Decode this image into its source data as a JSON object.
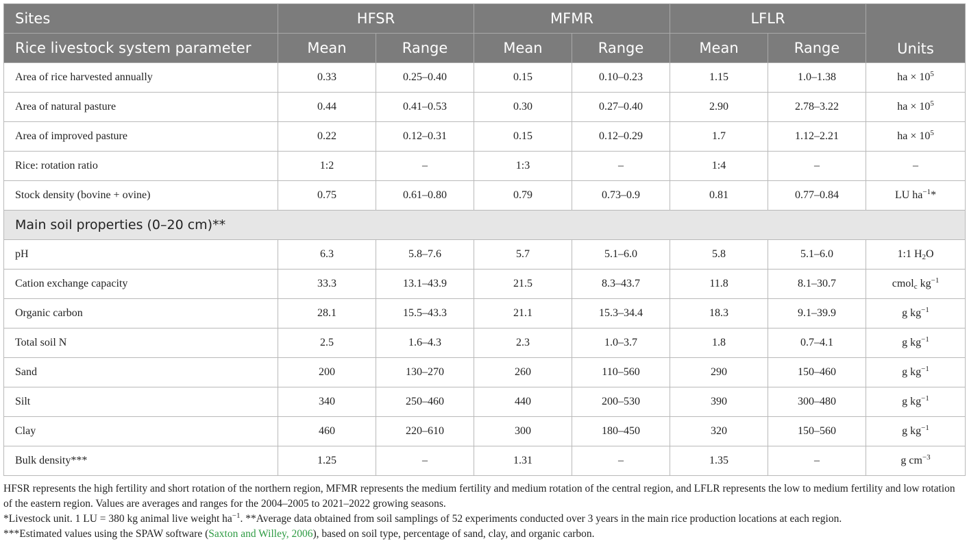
{
  "header": {
    "sites_label": "Sites",
    "param_label": "Rice livestock system parameter",
    "groups": [
      "HFSR",
      "MFMR",
      "LFLR"
    ],
    "mean_label": "Mean",
    "range_label": "Range",
    "units_label": "Units"
  },
  "rows": [
    {
      "label": "Area of rice harvested annually",
      "hfsr_mean": "0.33",
      "hfsr_range": "0.25–0.40",
      "mfmr_mean": "0.15",
      "mfmr_range": "0.10–0.23",
      "lflr_mean": "1.15",
      "lflr_range": "1.0–1.38",
      "unit_base": "ha × 10",
      "unit_sup": "5"
    },
    {
      "label": "Area of natural pasture",
      "hfsr_mean": "0.44",
      "hfsr_range": "0.41–0.53",
      "mfmr_mean": "0.30",
      "mfmr_range": "0.27–0.40",
      "lflr_mean": "2.90",
      "lflr_range": "2.78–3.22",
      "unit_base": "ha × 10",
      "unit_sup": "5"
    },
    {
      "label": "Area of improved pasture",
      "hfsr_mean": "0.22",
      "hfsr_range": "0.12–0.31",
      "mfmr_mean": "0.15",
      "mfmr_range": "0.12–0.29",
      "lflr_mean": "1.7",
      "lflr_range": "1.12–2.21",
      "unit_base": "ha × 10",
      "unit_sup": "5"
    },
    {
      "label": "Rice: rotation ratio",
      "hfsr_mean": "1:2",
      "hfsr_range": "–",
      "mfmr_mean": "1:3",
      "mfmr_range": "–",
      "lflr_mean": "1:4",
      "lflr_range": "–",
      "unit_base": "–"
    },
    {
      "label": "Stock density (bovine + ovine)",
      "hfsr_mean": "0.75",
      "hfsr_range": "0.61–0.80",
      "mfmr_mean": "0.79",
      "mfmr_range": "0.73–0.9",
      "lflr_mean": "0.81",
      "lflr_range": "0.77–0.84",
      "unit_base": "LU ha",
      "unit_sup": "−1",
      "unit_after": "*"
    }
  ],
  "section_title": "Main soil properties (0–20 cm)**",
  "soil_rows": [
    {
      "label": "pH",
      "hfsr_mean": "6.3",
      "hfsr_range": "5.8–7.6",
      "mfmr_mean": "5.7",
      "mfmr_range": "5.1–6.0",
      "lflr_mean": "5.8",
      "lflr_range": "5.1–6.0",
      "unit_base": "1:1 H",
      "unit_sub": "2",
      "unit_after": "O"
    },
    {
      "label": "Cation exchange capacity",
      "hfsr_mean": "33.3",
      "hfsr_range": "13.1–43.9",
      "mfmr_mean": "21.5",
      "mfmr_range": "8.3–43.7",
      "lflr_mean": "11.8",
      "lflr_range": "8.1–30.7",
      "unit_base": "cmol",
      "unit_sub": "c",
      "unit_after": " kg",
      "unit_sup2": "−1"
    },
    {
      "label": "Organic carbon",
      "hfsr_mean": "28.1",
      "hfsr_range": "15.5–43.3",
      "mfmr_mean": "21.1",
      "mfmr_range": "15.3–34.4",
      "lflr_mean": "18.3",
      "lflr_range": "9.1–39.9",
      "unit_base": "g kg",
      "unit_sup": "−1"
    },
    {
      "label": "Total soil N",
      "hfsr_mean": "2.5",
      "hfsr_range": "1.6–4.3",
      "mfmr_mean": "2.3",
      "mfmr_range": "1.0–3.7",
      "lflr_mean": "1.8",
      "lflr_range": "0.7–4.1",
      "unit_base": "g kg",
      "unit_sup": "−1"
    },
    {
      "label": "Sand",
      "hfsr_mean": "200",
      "hfsr_range": "130–270",
      "mfmr_mean": "260",
      "mfmr_range": "110–560",
      "lflr_mean": "290",
      "lflr_range": "150–460",
      "unit_base": "g kg",
      "unit_sup": "−1"
    },
    {
      "label": "Silt",
      "hfsr_mean": "340",
      "hfsr_range": "250–460",
      "mfmr_mean": "440",
      "mfmr_range": "200–530",
      "lflr_mean": "390",
      "lflr_range": "300–480",
      "unit_base": "g kg",
      "unit_sup": "−1"
    },
    {
      "label": "Clay",
      "hfsr_mean": "460",
      "hfsr_range": "220–610",
      "mfmr_mean": "300",
      "mfmr_range": "180–450",
      "lflr_mean": "320",
      "lflr_range": "150–560",
      "unit_base": "g kg",
      "unit_sup": "−1"
    },
    {
      "label": "Bulk density***",
      "hfsr_mean": "1.25",
      "hfsr_range": "–",
      "mfmr_mean": "1.31",
      "mfmr_range": "–",
      "lflr_mean": "1.35",
      "lflr_range": "–",
      "unit_base": "g cm",
      "unit_sup": "−3"
    }
  ],
  "notes": {
    "main": "HFSR represents the high fertility and short rotation of the northern region, MFMR represents the medium fertility and medium rotation of the central region, and LFLR represents the low to medium fertility and low rotation of the eastern region. Values are averages and ranges for the 2004–2005 to 2021–2022 growing seasons.",
    "note1_a": "*Livestock unit. 1 LU = 380 kg animal live weight ha",
    "note1_sup": "−1",
    "note1_b": ". **Average data obtained from soil samplings of 52 experiments conducted over 3 years in the main rice production locations at each region.",
    "note2_a": "***Estimated values using the SPAW software (",
    "note2_cite": "Saxton and Willey, 2006",
    "note2_b": "), based on soil type, percentage of sand, clay, and organic carbon."
  },
  "colors": {
    "header_bg": "#7c7c7c",
    "section_bg": "#e6e6e6",
    "citation": "#2e9b43"
  }
}
